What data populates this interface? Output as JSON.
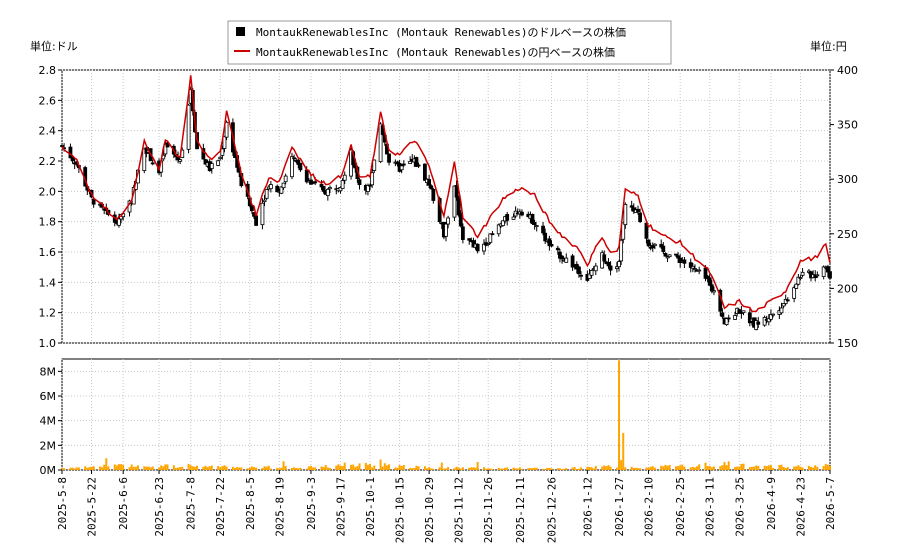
{
  "chart_data": {
    "type": "line",
    "legend": {
      "placement": "top-center",
      "entries": [
        {
          "label": "MontaukRenewablesInc (Montauk Renewables)のドルベースの株価",
          "style": "candlestick",
          "color": "#000000"
        },
        {
          "label": "MontaukRenewablesInc (Montauk Renewables)の円ベースの株価",
          "style": "line",
          "color": "#cc0000"
        }
      ]
    },
    "left_unit": "単位:ドル",
    "right_unit": "単位:円",
    "price_axis": {
      "min": 1.0,
      "max": 2.8,
      "ticks": [
        "1.0",
        "1.2",
        "1.4",
        "1.6",
        "1.8",
        "2.0",
        "2.2",
        "2.4",
        "2.6",
        "2.8"
      ]
    },
    "yen_axis": {
      "min": 150,
      "max": 400,
      "ticks": [
        "150",
        "200",
        "250",
        "300",
        "350",
        "400"
      ]
    },
    "volume_axis": {
      "min": 0,
      "max": 9000000,
      "ticks": [
        "0M",
        "2M",
        "4M",
        "6M",
        "8M"
      ]
    },
    "date_labels": [
      "2025-5-8",
      "2025-5-22",
      "2025-6-6",
      "2025-6-23",
      "2025-7-8",
      "2025-7-22",
      "2025-8-5",
      "2025-8-19",
      "2025-9-3",
      "2025-9-17",
      "2025-10-1",
      "2025-10-15",
      "2025-10-29",
      "2025-11-12",
      "2025-11-26",
      "2025-12-11",
      "2025-12-26",
      "2026-1-12",
      "2026-1-27",
      "2026-2-10",
      "2026-2-25",
      "2026-3-11",
      "2026-3-25",
      "2026-4-9",
      "2026-4-23",
      "2026-5-7"
    ],
    "price_anchors": [
      [
        "2025-5-8",
        2.3
      ],
      [
        "2025-5-15",
        2.18
      ],
      [
        "2025-5-22",
        1.95
      ],
      [
        "2025-5-29",
        1.85
      ],
      [
        "2025-6-3",
        1.8
      ],
      [
        "2025-6-10",
        1.95
      ],
      [
        "2025-6-16",
        2.3
      ],
      [
        "2025-6-23",
        2.12
      ],
      [
        "2025-6-26",
        2.3
      ],
      [
        "2025-7-3",
        2.2
      ],
      [
        "2025-7-8",
        2.68
      ],
      [
        "2025-7-11",
        2.28
      ],
      [
        "2025-7-17",
        2.15
      ],
      [
        "2025-7-22",
        2.22
      ],
      [
        "2025-7-25",
        2.45
      ],
      [
        "2025-8-1",
        2.05
      ],
      [
        "2025-8-8",
        1.8
      ],
      [
        "2025-8-14",
        2.05
      ],
      [
        "2025-8-19",
        2.0
      ],
      [
        "2025-8-25",
        2.22
      ],
      [
        "2025-9-3",
        2.05
      ],
      [
        "2025-9-10",
        2.0
      ],
      [
        "2025-9-17",
        2.05
      ],
      [
        "2025-9-22",
        2.25
      ],
      [
        "2025-9-26",
        2.05
      ],
      [
        "2025-10-1",
        2.02
      ],
      [
        "2025-10-6",
        2.45
      ],
      [
        "2025-10-10",
        2.2
      ],
      [
        "2025-10-15",
        2.15
      ],
      [
        "2025-10-22",
        2.2
      ],
      [
        "2025-10-29",
        2.05
      ],
      [
        "2025-11-5",
        1.72
      ],
      [
        "2025-11-10",
        2.02
      ],
      [
        "2025-11-14",
        1.7
      ],
      [
        "2025-11-21",
        1.62
      ],
      [
        "2025-11-26",
        1.68
      ],
      [
        "2025-12-3",
        1.8
      ],
      [
        "2025-12-11",
        1.88
      ],
      [
        "2025-12-18",
        1.8
      ],
      [
        "2025-12-26",
        1.62
      ],
      [
        "2026-1-2",
        1.55
      ],
      [
        "2026-1-8",
        1.48
      ],
      [
        "2026-1-12",
        1.42
      ],
      [
        "2026-1-19",
        1.58
      ],
      [
        "2026-1-24",
        1.48
      ],
      [
        "2026-1-27",
        1.55
      ],
      [
        "2026-1-30",
        1.9
      ],
      [
        "2026-2-5",
        1.85
      ],
      [
        "2026-2-10",
        1.66
      ],
      [
        "2026-2-17",
        1.6
      ],
      [
        "2026-2-25",
        1.55
      ],
      [
        "2026-3-4",
        1.48
      ],
      [
        "2026-3-11",
        1.4
      ],
      [
        "2026-3-18",
        1.15
      ],
      [
        "2026-3-25",
        1.22
      ],
      [
        "2026-4-1",
        1.12
      ],
      [
        "2026-4-9",
        1.18
      ],
      [
        "2026-4-16",
        1.28
      ],
      [
        "2026-4-23",
        1.45
      ],
      [
        "2026-4-30",
        1.45
      ],
      [
        "2026-5-5",
        1.52
      ],
      [
        "2026-5-8",
        1.38
      ]
    ],
    "yen_anchors": [
      [
        "2025-5-8",
        330
      ],
      [
        "2025-5-15",
        318
      ],
      [
        "2025-5-22",
        286
      ],
      [
        "2025-5-29",
        272
      ],
      [
        "2025-6-3",
        262
      ],
      [
        "2025-6-10",
        280
      ],
      [
        "2025-6-16",
        335
      ],
      [
        "2025-6-23",
        310
      ],
      [
        "2025-6-26",
        335
      ],
      [
        "2025-7-3",
        320
      ],
      [
        "2025-7-8",
        395
      ],
      [
        "2025-7-11",
        335
      ],
      [
        "2025-7-17",
        318
      ],
      [
        "2025-7-22",
        325
      ],
      [
        "2025-7-25",
        362
      ],
      [
        "2025-8-1",
        305
      ],
      [
        "2025-8-8",
        268
      ],
      [
        "2025-8-14",
        302
      ],
      [
        "2025-8-19",
        298
      ],
      [
        "2025-8-25",
        330
      ],
      [
        "2025-9-3",
        304
      ],
      [
        "2025-9-10",
        296
      ],
      [
        "2025-9-17",
        302
      ],
      [
        "2025-9-22",
        330
      ],
      [
        "2025-9-26",
        302
      ],
      [
        "2025-10-1",
        302
      ],
      [
        "2025-10-6",
        360
      ],
      [
        "2025-10-10",
        327
      ],
      [
        "2025-10-15",
        322
      ],
      [
        "2025-10-22",
        336
      ],
      [
        "2025-10-29",
        312
      ],
      [
        "2025-11-5",
        265
      ],
      [
        "2025-11-10",
        318
      ],
      [
        "2025-11-14",
        265
      ],
      [
        "2025-11-21",
        248
      ],
      [
        "2025-11-26",
        262
      ],
      [
        "2025-12-3",
        282
      ],
      [
        "2025-12-11",
        292
      ],
      [
        "2025-12-18",
        285
      ],
      [
        "2025-12-26",
        258
      ],
      [
        "2026-1-2",
        245
      ],
      [
        "2026-1-8",
        236
      ],
      [
        "2026-1-12",
        222
      ],
      [
        "2026-1-19",
        248
      ],
      [
        "2026-1-24",
        228
      ],
      [
        "2026-1-27",
        238
      ],
      [
        "2026-1-30",
        290
      ],
      [
        "2026-2-5",
        285
      ],
      [
        "2026-2-10",
        258
      ],
      [
        "2026-2-17",
        248
      ],
      [
        "2026-2-25",
        242
      ],
      [
        "2026-3-4",
        228
      ],
      [
        "2026-3-11",
        215
      ],
      [
        "2026-3-18",
        182
      ],
      [
        "2026-3-25",
        188
      ],
      [
        "2026-4-1",
        178
      ],
      [
        "2026-4-9",
        188
      ],
      [
        "2026-4-16",
        198
      ],
      [
        "2026-4-23",
        225
      ],
      [
        "2026-4-30",
        228
      ],
      [
        "2026-5-5",
        240
      ],
      [
        "2026-5-8",
        212
      ]
    ],
    "volume_anchors": [
      [
        "2025-5-8",
        150000
      ],
      [
        "2025-6-1",
        350000
      ],
      [
        "2025-7-1",
        300000
      ],
      [
        "2025-8-1",
        250000
      ],
      [
        "2025-9-1",
        220000
      ],
      [
        "2025-10-1",
        400000
      ],
      [
        "2025-11-1",
        200000
      ],
      [
        "2025-12-1",
        150000
      ],
      [
        "2026-1-1",
        120000
      ],
      [
        "2026-1-26",
        300000
      ],
      [
        "2026-2-10",
        250000
      ],
      [
        "2026-3-15",
        450000
      ],
      [
        "2026-4-15",
        300000
      ],
      [
        "2026-5-8",
        300000
      ]
    ],
    "volume_spikes": [
      [
        "2025-5-29",
        950000
      ],
      [
        "2025-6-2",
        450000
      ],
      [
        "2025-7-7",
        500000
      ],
      [
        "2025-8-21",
        700000
      ],
      [
        "2025-9-19",
        600000
      ],
      [
        "2025-10-6",
        850000
      ],
      [
        "2025-10-8",
        550000
      ],
      [
        "2025-11-4",
        600000
      ],
      [
        "2025-11-21",
        650000
      ],
      [
        "2026-1-27",
        8900000
      ],
      [
        "2026-1-28",
        800000
      ],
      [
        "2026-1-29",
        3000000
      ],
      [
        "2026-3-20",
        700000
      ],
      [
        "2026-5-5",
        500000
      ]
    ]
  }
}
